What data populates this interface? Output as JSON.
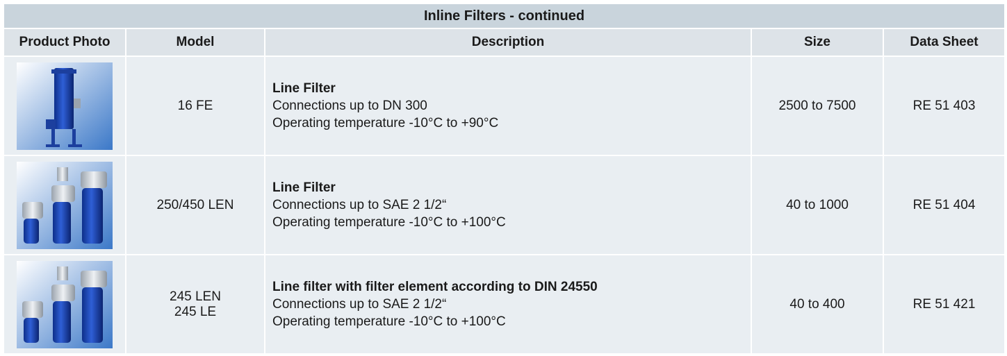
{
  "table": {
    "title": "Inline Filters - continued",
    "columns": [
      "Product Photo",
      "Model",
      "Description",
      "Size",
      "Data Sheet"
    ],
    "rows": [
      {
        "model": [
          "16 FE"
        ],
        "description": {
          "heading": "Line Filter",
          "lines": [
            "Connections up to DN 300",
            "Operating temperature -10°C to +90°C"
          ]
        },
        "size": "2500 to 7500",
        "data_sheet": "RE 51 403"
      },
      {
        "model": [
          "250/450 LEN"
        ],
        "description": {
          "heading": "Line Filter",
          "lines": [
            "Connections up to SAE 2 1/2“",
            "Operating temperature -10°C to +100°C"
          ]
        },
        "size": "40 to 1000",
        "data_sheet": "RE 51 404"
      },
      {
        "model": [
          "245 LEN",
          "245 LE"
        ],
        "description": {
          "heading": "Line filter with filter element according to DIN 24550",
          "lines": [
            "Connections up to SAE 2 1/2“",
            "Operating temperature -10°C to +100°C"
          ]
        },
        "size": "40 to 400",
        "data_sheet": "RE 51 421"
      }
    ]
  }
}
